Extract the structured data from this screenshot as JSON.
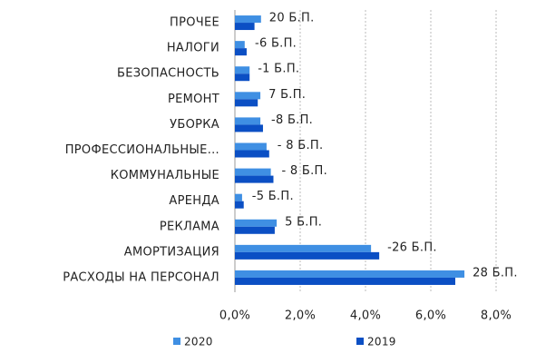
{
  "chart_data": {
    "type": "hbar",
    "categories": [
      "ПРОЧЕЕ",
      "НАЛОГИ",
      "БЕЗОПАСНОСТЬ",
      "РЕМОНТ",
      "УБОРКА",
      "ПРОФЕССИОНАЛЬНЫЕ...",
      "КОММУНАЛЬНЫЕ",
      "АРЕНДА",
      "РЕКЛАМА",
      "АМОРТИЗАЦИЯ",
      "РАСХОДЫ НА ПЕРСОНАЛ"
    ],
    "series": [
      {
        "name": "2020",
        "color": "#3f8fe3",
        "values": [
          0.8,
          0.3,
          0.45,
          0.78,
          0.78,
          0.97,
          1.1,
          0.22,
          1.28,
          4.17,
          7.03
        ]
      },
      {
        "name": "2019",
        "color": "#0b4fc4",
        "values": [
          0.6,
          0.36,
          0.45,
          0.7,
          0.86,
          1.05,
          1.18,
          0.27,
          1.22,
          4.42,
          6.75
        ]
      }
    ],
    "annotations": [
      "20 Б.П.",
      "-6 Б.П.",
      "-1 Б.П.",
      "7 Б.П.",
      "-8 Б.П.",
      "- 8 Б.П.",
      "- 8 Б.П.",
      "-5 Б.П.",
      "5 Б.П.",
      "-26 Б.П.",
      "28 Б.П."
    ],
    "xlim": [
      0,
      8
    ],
    "xticks": [
      {
        "value": 0,
        "label": "0,0%"
      },
      {
        "value": 2,
        "label": "2,0%"
      },
      {
        "value": 4,
        "label": "4,0%"
      },
      {
        "value": 6,
        "label": "6,0%"
      },
      {
        "value": 8,
        "label": "8,0%"
      }
    ],
    "grid": true,
    "legend": "bottom"
  }
}
